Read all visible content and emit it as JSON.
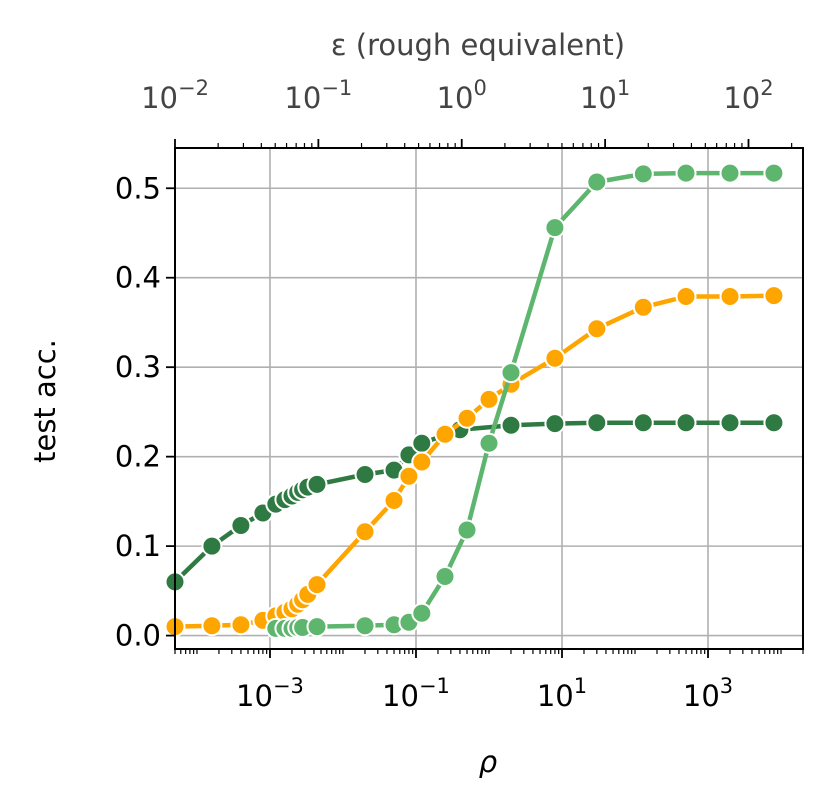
{
  "chart_data": {
    "type": "line",
    "title": "",
    "xlabel": "ρ",
    "ylabel": "test acc.",
    "top_xlabel": "ε (rough equivalent)",
    "x_scale": "log",
    "xlim": [
      5e-05,
      20000
    ],
    "ylim": [
      -0.015,
      0.545
    ],
    "top_xlim": [
      0.01,
      240
    ],
    "grid": true,
    "x_ticks": [
      {
        "value": 0.001,
        "base": "10",
        "exp": "−3"
      },
      {
        "value": 0.1,
        "base": "10",
        "exp": "−1"
      },
      {
        "value": 10,
        "base": "10",
        "exp": "1"
      },
      {
        "value": 1000,
        "base": "10",
        "exp": "3"
      }
    ],
    "top_x_ticks": [
      {
        "value": 0.01,
        "base": "10",
        "exp": "−2"
      },
      {
        "value": 0.1,
        "base": "10",
        "exp": "−1"
      },
      {
        "value": 1,
        "base": "10",
        "exp": "0"
      },
      {
        "value": 10,
        "base": "10",
        "exp": "1"
      },
      {
        "value": 100,
        "base": "10",
        "exp": "2"
      }
    ],
    "y_ticks": [
      {
        "value": 0.0,
        "label": "0.0"
      },
      {
        "value": 0.1,
        "label": "0.1"
      },
      {
        "value": 0.2,
        "label": "0.2"
      },
      {
        "value": 0.3,
        "label": "0.3"
      },
      {
        "value": 0.4,
        "label": "0.4"
      },
      {
        "value": 0.5,
        "label": "0.5"
      }
    ],
    "series": [
      {
        "color": "#2f7a42",
        "x": [
          5e-05,
          0.00016,
          0.0004,
          0.0008,
          0.0012,
          0.0016,
          0.002,
          0.0024,
          0.0028,
          0.0033,
          0.0044,
          0.02,
          0.05,
          0.08,
          0.12,
          0.4,
          2,
          8,
          30,
          130,
          500,
          2000,
          8000
        ],
        "y": [
          0.06,
          0.1,
          0.123,
          0.137,
          0.147,
          0.152,
          0.156,
          0.16,
          0.163,
          0.166,
          0.169,
          0.18,
          0.185,
          0.202,
          0.215,
          0.23,
          0.235,
          0.237,
          0.238,
          0.238,
          0.238,
          0.238,
          0.238
        ]
      },
      {
        "color": "#ffa500",
        "x": [
          5e-05,
          0.00016,
          0.0004,
          0.0008,
          0.0012,
          0.0016,
          0.002,
          0.0024,
          0.0028,
          0.0033,
          0.0044,
          0.02,
          0.05,
          0.08,
          0.12,
          0.25,
          0.5,
          1,
          2,
          8,
          30,
          130,
          500,
          2000,
          8000
        ],
        "y": [
          0.01,
          0.011,
          0.012,
          0.017,
          0.022,
          0.026,
          0.03,
          0.035,
          0.04,
          0.046,
          0.057,
          0.116,
          0.151,
          0.178,
          0.194,
          0.225,
          0.243,
          0.264,
          0.281,
          0.31,
          0.343,
          0.367,
          0.379,
          0.379,
          0.38
        ]
      },
      {
        "color": "#5eb56e",
        "x": [
          0.0012,
          0.0016,
          0.002,
          0.0024,
          0.0028,
          0.0044,
          0.02,
          0.05,
          0.08,
          0.12,
          0.25,
          0.5,
          1,
          2,
          8,
          30,
          130,
          500,
          2000,
          8000
        ],
        "y": [
          0.008,
          0.008,
          0.008,
          0.009,
          0.009,
          0.01,
          0.011,
          0.012,
          0.015,
          0.025,
          0.066,
          0.118,
          0.215,
          0.294,
          0.456,
          0.507,
          0.516,
          0.517,
          0.517,
          0.517
        ]
      }
    ]
  }
}
